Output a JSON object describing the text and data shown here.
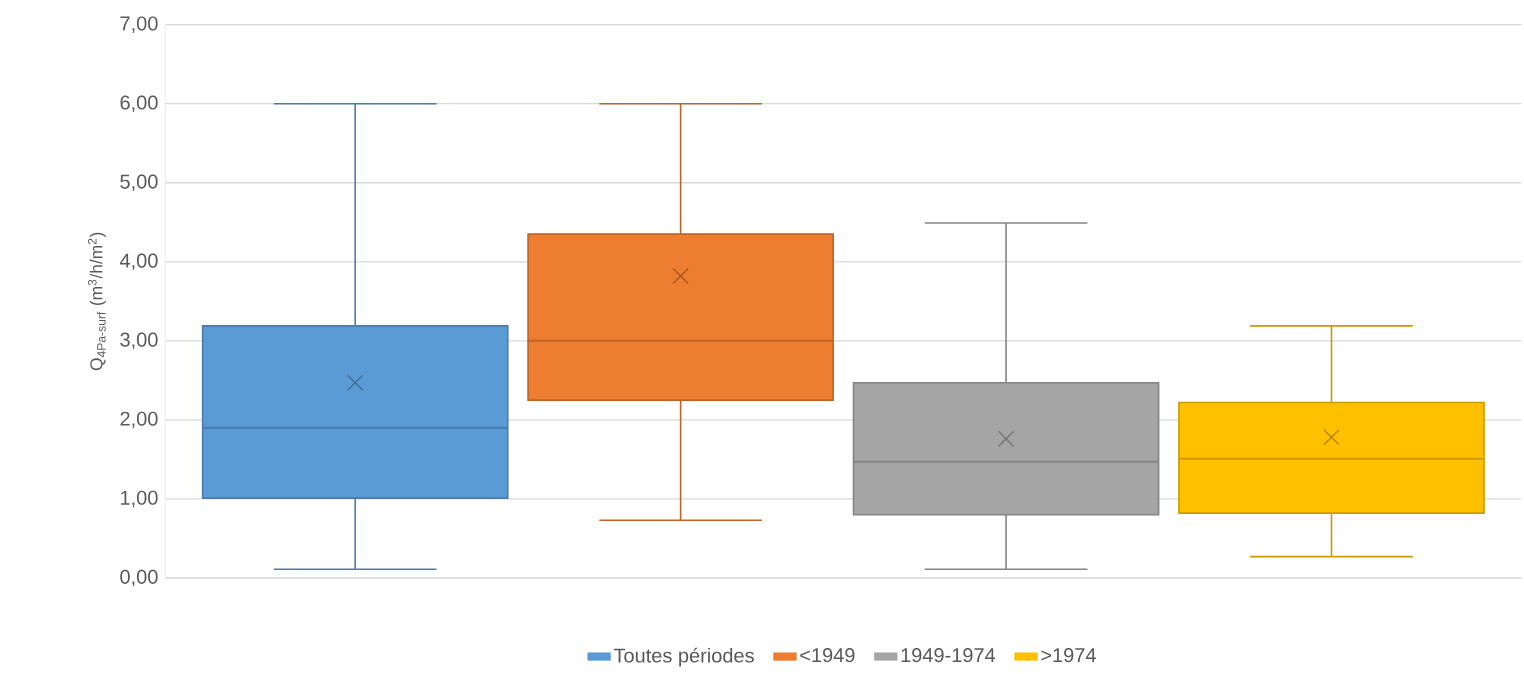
{
  "chart_data": {
    "type": "box",
    "ylabel": "Q$_{4Pa-surf}$ (m$^{3}$/h/m$^{2}$)",
    "categories": [
      null
    ],
    "series": [
      {
        "name": "Toutes périodes",
        "color": "#5b9bd5",
        "boxes": [
          {
            "low": 0.11,
            "q1": 1.01,
            "median": 1.9,
            "q3": 3.19,
            "high": 6.0,
            "mean": 2.47
          }
        ]
      },
      {
        "name": "<1949",
        "color": "#ed7d31",
        "boxes": [
          {
            "low": 0.73,
            "q1": 2.25,
            "median": 3.0,
            "q3": 4.35,
            "high": 6.0,
            "mean": 3.82
          }
        ]
      },
      {
        "name": "1949-1974",
        "color": "#a5a5a5",
        "boxes": [
          {
            "low": 0.11,
            "q1": 0.8,
            "median": 1.47,
            "q3": 2.47,
            "high": 4.49,
            "mean": 1.76
          }
        ]
      },
      {
        "name": ">1974",
        "color": "#ffc000",
        "boxes": [
          {
            "low": 0.27,
            "q1": 0.82,
            "median": 1.51,
            "q3": 2.22,
            "high": 3.19,
            "mean": 1.78
          }
        ]
      }
    ],
    "ylim": [
      0,
      7
    ],
    "yticks": [
      {
        "value": 0,
        "label": "0,00"
      },
      {
        "value": 1,
        "label": "1,00"
      },
      {
        "value": 2,
        "label": "2,00"
      },
      {
        "value": 3,
        "label": "3,00"
      },
      {
        "value": 4,
        "label": "4,00"
      },
      {
        "value": 5,
        "label": "5,00"
      },
      {
        "value": 6,
        "label": "6,00"
      },
      {
        "value": 7,
        "label": "7,00"
      }
    ],
    "grid": "y",
    "legend": "bottom"
  }
}
